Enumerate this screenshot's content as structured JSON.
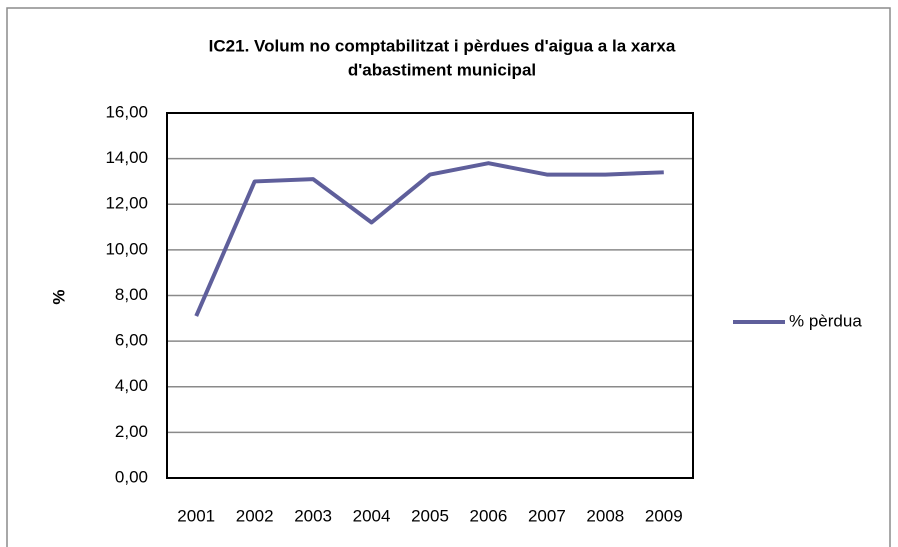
{
  "chart_data": {
    "type": "line",
    "title": [
      "IC21. Volum no comptabilitzat i pèrdues d'aigua a la xarxa",
      "d'abastiment municipal"
    ],
    "y_label": "%",
    "categories": [
      "2001",
      "2002",
      "2003",
      "2004",
      "2005",
      "2006",
      "2007",
      "2008",
      "2009"
    ],
    "series": [
      {
        "name": "% pèrdua",
        "color": "#5f5f9b",
        "values": [
          7.1,
          13.0,
          13.1,
          11.2,
          13.3,
          13.8,
          13.3,
          13.3,
          13.4
        ]
      }
    ],
    "ylim": [
      0,
      16
    ],
    "yticks": [
      {
        "value": 0,
        "label": "0,00"
      },
      {
        "value": 2,
        "label": "2,00"
      },
      {
        "value": 4,
        "label": "4,00"
      },
      {
        "value": 6,
        "label": "6,00"
      },
      {
        "value": 8,
        "label": "8,00"
      },
      {
        "value": 10,
        "label": "10,00"
      },
      {
        "value": 12,
        "label": "12,00"
      },
      {
        "value": 14,
        "label": "14,00"
      },
      {
        "value": 16,
        "label": "16,00"
      }
    ],
    "grid": true,
    "legend": "right"
  }
}
